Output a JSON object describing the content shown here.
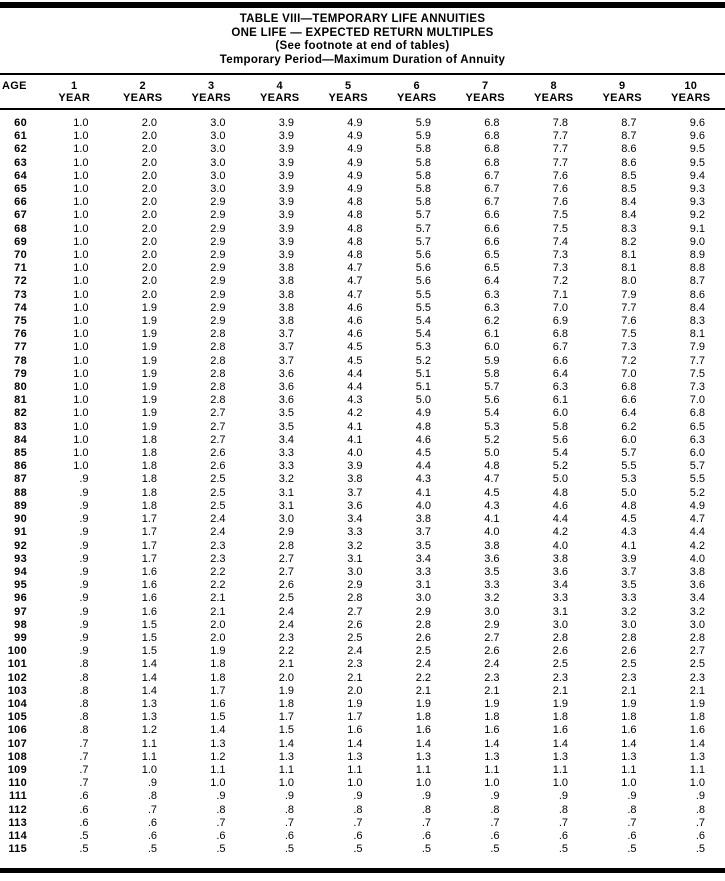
{
  "colors": {
    "background": "#ffffff",
    "text": "#000000",
    "rule": "#000000"
  },
  "title_block": {
    "line1": "TABLE VIII—TEMPORARY LIFE ANNUITIES",
    "line2": "ONE LIFE — EXPECTED RETURN MULTIPLES",
    "line3": "(See footnote at end of tables)",
    "line4": "Temporary Period—Maximum Duration of Annuity"
  },
  "table": {
    "age_header": "AGE",
    "columns": [
      {
        "number": "1",
        "unit": "YEAR"
      },
      {
        "number": "2",
        "unit": "YEARS"
      },
      {
        "number": "3",
        "unit": "YEARS"
      },
      {
        "number": "4",
        "unit": "YEARS"
      },
      {
        "number": "5",
        "unit": "YEARS"
      },
      {
        "number": "6",
        "unit": "YEARS"
      },
      {
        "number": "7",
        "unit": "YEARS"
      },
      {
        "number": "8",
        "unit": "YEARS"
      },
      {
        "number": "9",
        "unit": "YEARS"
      },
      {
        "number": "10",
        "unit": "YEARS"
      }
    ],
    "rows": [
      {
        "age": "60",
        "values": [
          "1.0",
          "2.0",
          "3.0",
          "3.9",
          "4.9",
          "5.9",
          "6.8",
          "7.8",
          "8.7",
          "9.6"
        ]
      },
      {
        "age": "61",
        "values": [
          "1.0",
          "2.0",
          "3.0",
          "3.9",
          "4.9",
          "5.9",
          "6.8",
          "7.7",
          "8.7",
          "9.6"
        ]
      },
      {
        "age": "62",
        "values": [
          "1.0",
          "2.0",
          "3.0",
          "3.9",
          "4.9",
          "5.8",
          "6.8",
          "7.7",
          "8.6",
          "9.5"
        ]
      },
      {
        "age": "63",
        "values": [
          "1.0",
          "2.0",
          "3.0",
          "3.9",
          "4.9",
          "5.8",
          "6.8",
          "7.7",
          "8.6",
          "9.5"
        ]
      },
      {
        "age": "64",
        "values": [
          "1.0",
          "2.0",
          "3.0",
          "3.9",
          "4.9",
          "5.8",
          "6.7",
          "7.6",
          "8.5",
          "9.4"
        ]
      },
      {
        "age": "65",
        "values": [
          "1.0",
          "2.0",
          "3.0",
          "3.9",
          "4.9",
          "5.8",
          "6.7",
          "7.6",
          "8.5",
          "9.3"
        ]
      },
      {
        "age": "66",
        "values": [
          "1.0",
          "2.0",
          "2.9",
          "3.9",
          "4.8",
          "5.8",
          "6.7",
          "7.6",
          "8.4",
          "9.3"
        ]
      },
      {
        "age": "67",
        "values": [
          "1.0",
          "2.0",
          "2.9",
          "3.9",
          "4.8",
          "5.7",
          "6.6",
          "7.5",
          "8.4",
          "9.2"
        ]
      },
      {
        "age": "68",
        "values": [
          "1.0",
          "2.0",
          "2.9",
          "3.9",
          "4.8",
          "5.7",
          "6.6",
          "7.5",
          "8.3",
          "9.1"
        ]
      },
      {
        "age": "69",
        "values": [
          "1.0",
          "2.0",
          "2.9",
          "3.9",
          "4.8",
          "5.7",
          "6.6",
          "7.4",
          "8.2",
          "9.0"
        ]
      },
      {
        "age": "70",
        "values": [
          "1.0",
          "2.0",
          "2.9",
          "3.9",
          "4.8",
          "5.6",
          "6.5",
          "7.3",
          "8.1",
          "8.9"
        ]
      },
      {
        "age": "71",
        "values": [
          "1.0",
          "2.0",
          "2.9",
          "3.8",
          "4.7",
          "5.6",
          "6.5",
          "7.3",
          "8.1",
          "8.8"
        ]
      },
      {
        "age": "72",
        "values": [
          "1.0",
          "2.0",
          "2.9",
          "3.8",
          "4.7",
          "5.6",
          "6.4",
          "7.2",
          "8.0",
          "8.7"
        ]
      },
      {
        "age": "73",
        "values": [
          "1.0",
          "2.0",
          "2.9",
          "3.8",
          "4.7",
          "5.5",
          "6.3",
          "7.1",
          "7.9",
          "8.6"
        ]
      },
      {
        "age": "74",
        "values": [
          "1.0",
          "1.9",
          "2.9",
          "3.8",
          "4.6",
          "5.5",
          "6.3",
          "7.0",
          "7.7",
          "8.4"
        ]
      },
      {
        "age": "75",
        "values": [
          "1.0",
          "1.9",
          "2.9",
          "3.8",
          "4.6",
          "5.4",
          "6.2",
          "6.9",
          "7.6",
          "8.3"
        ]
      },
      {
        "age": "76",
        "values": [
          "1.0",
          "1.9",
          "2.8",
          "3.7",
          "4.6",
          "5.4",
          "6.1",
          "6.8",
          "7.5",
          "8.1"
        ]
      },
      {
        "age": "77",
        "values": [
          "1.0",
          "1.9",
          "2.8",
          "3.7",
          "4.5",
          "5.3",
          "6.0",
          "6.7",
          "7.3",
          "7.9"
        ]
      },
      {
        "age": "78",
        "values": [
          "1.0",
          "1.9",
          "2.8",
          "3.7",
          "4.5",
          "5.2",
          "5.9",
          "6.6",
          "7.2",
          "7.7"
        ]
      },
      {
        "age": "79",
        "values": [
          "1.0",
          "1.9",
          "2.8",
          "3.6",
          "4.4",
          "5.1",
          "5.8",
          "6.4",
          "7.0",
          "7.5"
        ]
      },
      {
        "age": "80",
        "values": [
          "1.0",
          "1.9",
          "2.8",
          "3.6",
          "4.4",
          "5.1",
          "5.7",
          "6.3",
          "6.8",
          "7.3"
        ]
      },
      {
        "age": "81",
        "values": [
          "1.0",
          "1.9",
          "2.8",
          "3.6",
          "4.3",
          "5.0",
          "5.6",
          "6.1",
          "6.6",
          "7.0"
        ]
      },
      {
        "age": "82",
        "values": [
          "1.0",
          "1.9",
          "2.7",
          "3.5",
          "4.2",
          "4.9",
          "5.4",
          "6.0",
          "6.4",
          "6.8"
        ]
      },
      {
        "age": "83",
        "values": [
          "1.0",
          "1.9",
          "2.7",
          "3.5",
          "4.1",
          "4.8",
          "5.3",
          "5.8",
          "6.2",
          "6.5"
        ]
      },
      {
        "age": "84",
        "values": [
          "1.0",
          "1.8",
          "2.7",
          "3.4",
          "4.1",
          "4.6",
          "5.2",
          "5.6",
          "6.0",
          "6.3"
        ]
      },
      {
        "age": "85",
        "values": [
          "1.0",
          "1.8",
          "2.6",
          "3.3",
          "4.0",
          "4.5",
          "5.0",
          "5.4",
          "5.7",
          "6.0"
        ]
      },
      {
        "age": "86",
        "values": [
          "1.0",
          "1.8",
          "2.6",
          "3.3",
          "3.9",
          "4.4",
          "4.8",
          "5.2",
          "5.5",
          "5.7"
        ]
      },
      {
        "age": "87",
        "values": [
          ".9",
          "1.8",
          "2.5",
          "3.2",
          "3.8",
          "4.3",
          "4.7",
          "5.0",
          "5.3",
          "5.5"
        ]
      },
      {
        "age": "88",
        "values": [
          ".9",
          "1.8",
          "2.5",
          "3.1",
          "3.7",
          "4.1",
          "4.5",
          "4.8",
          "5.0",
          "5.2"
        ]
      },
      {
        "age": "89",
        "values": [
          ".9",
          "1.8",
          "2.5",
          "3.1",
          "3.6",
          "4.0",
          "4.3",
          "4.6",
          "4.8",
          "4.9"
        ]
      },
      {
        "age": "90",
        "values": [
          ".9",
          "1.7",
          "2.4",
          "3.0",
          "3.4",
          "3.8",
          "4.1",
          "4.4",
          "4.5",
          "4.7"
        ]
      },
      {
        "age": "91",
        "values": [
          ".9",
          "1.7",
          "2.4",
          "2.9",
          "3.3",
          "3.7",
          "4.0",
          "4.2",
          "4.3",
          "4.4"
        ]
      },
      {
        "age": "92",
        "values": [
          ".9",
          "1.7",
          "2.3",
          "2.8",
          "3.2",
          "3.5",
          "3.8",
          "4.0",
          "4.1",
          "4.2"
        ]
      },
      {
        "age": "93",
        "values": [
          ".9",
          "1.7",
          "2.3",
          "2.7",
          "3.1",
          "3.4",
          "3.6",
          "3.8",
          "3.9",
          "4.0"
        ]
      },
      {
        "age": "94",
        "values": [
          ".9",
          "1.6",
          "2.2",
          "2.7",
          "3.0",
          "3.3",
          "3.5",
          "3.6",
          "3.7",
          "3.8"
        ]
      },
      {
        "age": "95",
        "values": [
          ".9",
          "1.6",
          "2.2",
          "2.6",
          "2.9",
          "3.1",
          "3.3",
          "3.4",
          "3.5",
          "3.6"
        ]
      },
      {
        "age": "96",
        "values": [
          ".9",
          "1.6",
          "2.1",
          "2.5",
          "2.8",
          "3.0",
          "3.2",
          "3.3",
          "3.3",
          "3.4"
        ]
      },
      {
        "age": "97",
        "values": [
          ".9",
          "1.6",
          "2.1",
          "2.4",
          "2.7",
          "2.9",
          "3.0",
          "3.1",
          "3.2",
          "3.2"
        ]
      },
      {
        "age": "98",
        "values": [
          ".9",
          "1.5",
          "2.0",
          "2.4",
          "2.6",
          "2.8",
          "2.9",
          "3.0",
          "3.0",
          "3.0"
        ]
      },
      {
        "age": "99",
        "values": [
          ".9",
          "1.5",
          "2.0",
          "2.3",
          "2.5",
          "2.6",
          "2.7",
          "2.8",
          "2.8",
          "2.8"
        ]
      },
      {
        "age": "100",
        "values": [
          ".9",
          "1.5",
          "1.9",
          "2.2",
          "2.4",
          "2.5",
          "2.6",
          "2.6",
          "2.6",
          "2.7"
        ]
      },
      {
        "age": "101",
        "values": [
          ".8",
          "1.4",
          "1.8",
          "2.1",
          "2.3",
          "2.4",
          "2.4",
          "2.5",
          "2.5",
          "2.5"
        ]
      },
      {
        "age": "102",
        "values": [
          ".8",
          "1.4",
          "1.8",
          "2.0",
          "2.1",
          "2.2",
          "2.3",
          "2.3",
          "2.3",
          "2.3"
        ]
      },
      {
        "age": "103",
        "values": [
          ".8",
          "1.4",
          "1.7",
          "1.9",
          "2.0",
          "2.1",
          "2.1",
          "2.1",
          "2.1",
          "2.1"
        ]
      },
      {
        "age": "104",
        "values": [
          ".8",
          "1.3",
          "1.6",
          "1.8",
          "1.9",
          "1.9",
          "1.9",
          "1.9",
          "1.9",
          "1.9"
        ]
      },
      {
        "age": "105",
        "values": [
          ".8",
          "1.3",
          "1.5",
          "1.7",
          "1.7",
          "1.8",
          "1.8",
          "1.8",
          "1.8",
          "1.8"
        ]
      },
      {
        "age": "106",
        "values": [
          ".8",
          "1.2",
          "1.4",
          "1.5",
          "1.6",
          "1.6",
          "1.6",
          "1.6",
          "1.6",
          "1.6"
        ]
      },
      {
        "age": "107",
        "values": [
          ".7",
          "1.1",
          "1.3",
          "1.4",
          "1.4",
          "1.4",
          "1.4",
          "1.4",
          "1.4",
          "1.4"
        ]
      },
      {
        "age": "108",
        "values": [
          ".7",
          "1.1",
          "1.2",
          "1.3",
          "1.3",
          "1.3",
          "1.3",
          "1.3",
          "1.3",
          "1.3"
        ]
      },
      {
        "age": "109",
        "values": [
          ".7",
          "1.0",
          "1.1",
          "1.1",
          "1.1",
          "1.1",
          "1.1",
          "1.1",
          "1.1",
          "1.1"
        ]
      },
      {
        "age": "110",
        "values": [
          ".7",
          ".9",
          "1.0",
          "1.0",
          "1.0",
          "1.0",
          "1.0",
          "1.0",
          "1.0",
          "1.0"
        ]
      },
      {
        "age": "111",
        "values": [
          ".6",
          ".8",
          ".9",
          ".9",
          ".9",
          ".9",
          ".9",
          ".9",
          ".9",
          ".9"
        ]
      },
      {
        "age": "112",
        "values": [
          ".6",
          ".7",
          ".8",
          ".8",
          ".8",
          ".8",
          ".8",
          ".8",
          ".8",
          ".8"
        ]
      },
      {
        "age": "113",
        "values": [
          ".6",
          ".6",
          ".7",
          ".7",
          ".7",
          ".7",
          ".7",
          ".7",
          ".7",
          ".7"
        ]
      },
      {
        "age": "114",
        "values": [
          ".5",
          ".6",
          ".6",
          ".6",
          ".6",
          ".6",
          ".6",
          ".6",
          ".6",
          ".6"
        ]
      },
      {
        "age": "115",
        "values": [
          ".5",
          ".5",
          ".5",
          ".5",
          ".5",
          ".5",
          ".5",
          ".5",
          ".5",
          ".5"
        ]
      }
    ]
  }
}
